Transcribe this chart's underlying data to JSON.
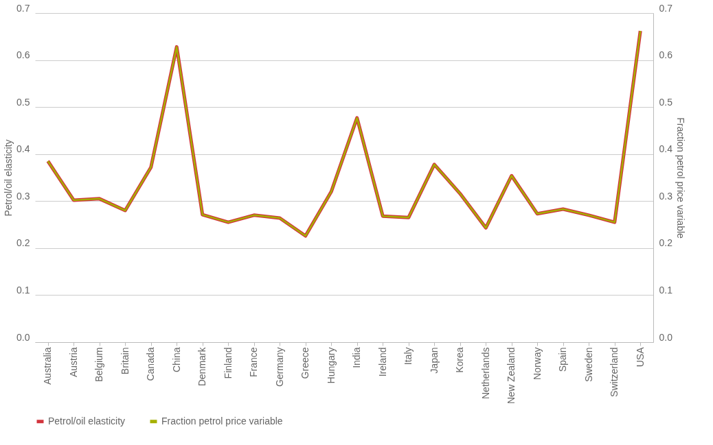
{
  "chart_data": {
    "type": "line",
    "categories": [
      "Australia",
      "Austria",
      "Belgium",
      "Britain",
      "Canada",
      "China",
      "Denmark",
      "Finland",
      "France",
      "Germany",
      "Greece",
      "Hungary",
      "India",
      "Ireland",
      "Italy",
      "Japan",
      "Korea",
      "Netherlands",
      "New Zealand",
      "Norway",
      "Spain",
      "Sweden",
      "Switzerland",
      "USA"
    ],
    "ylabel": "Petrol/oil elasticity",
    "y2label": "Fraction petrol price variable",
    "ylim": [
      0,
      0.7
    ],
    "yticks": [
      {
        "value": 0,
        "label": "0.0"
      },
      0.1,
      0.2,
      0.3,
      0.4,
      0.5,
      0.6,
      0.7
    ],
    "y2lim": [
      0,
      0.7
    ],
    "y2ticks": [
      {
        "value": 0,
        "label": "0.0"
      },
      0.1,
      0.2,
      0.3,
      0.4,
      0.5,
      0.6,
      0.7
    ],
    "grid": "y",
    "legend": "bottom",
    "marker": "none",
    "line_style": "solid",
    "series": [
      {
        "name": "Petrol/oil elasticity",
        "color": "#d2343c",
        "values": [
          0.385,
          0.302,
          0.305,
          0.28,
          0.372,
          0.628,
          0.271,
          0.255,
          0.27,
          0.264,
          0.226,
          0.32,
          0.477,
          0.268,
          0.265,
          0.378,
          0.316,
          0.243,
          0.354,
          0.273,
          0.283,
          0.27,
          0.255,
          0.662
        ]
      },
      {
        "name": "Fraction petrol price variable",
        "color": "#a5b000",
        "axis": "y2",
        "values": [
          0.385,
          0.302,
          0.305,
          0.28,
          0.372,
          0.628,
          0.271,
          0.255,
          0.27,
          0.264,
          0.226,
          0.32,
          0.477,
          0.268,
          0.265,
          0.378,
          0.316,
          0.243,
          0.354,
          0.273,
          0.283,
          0.27,
          0.255,
          0.662
        ]
      }
    ]
  }
}
